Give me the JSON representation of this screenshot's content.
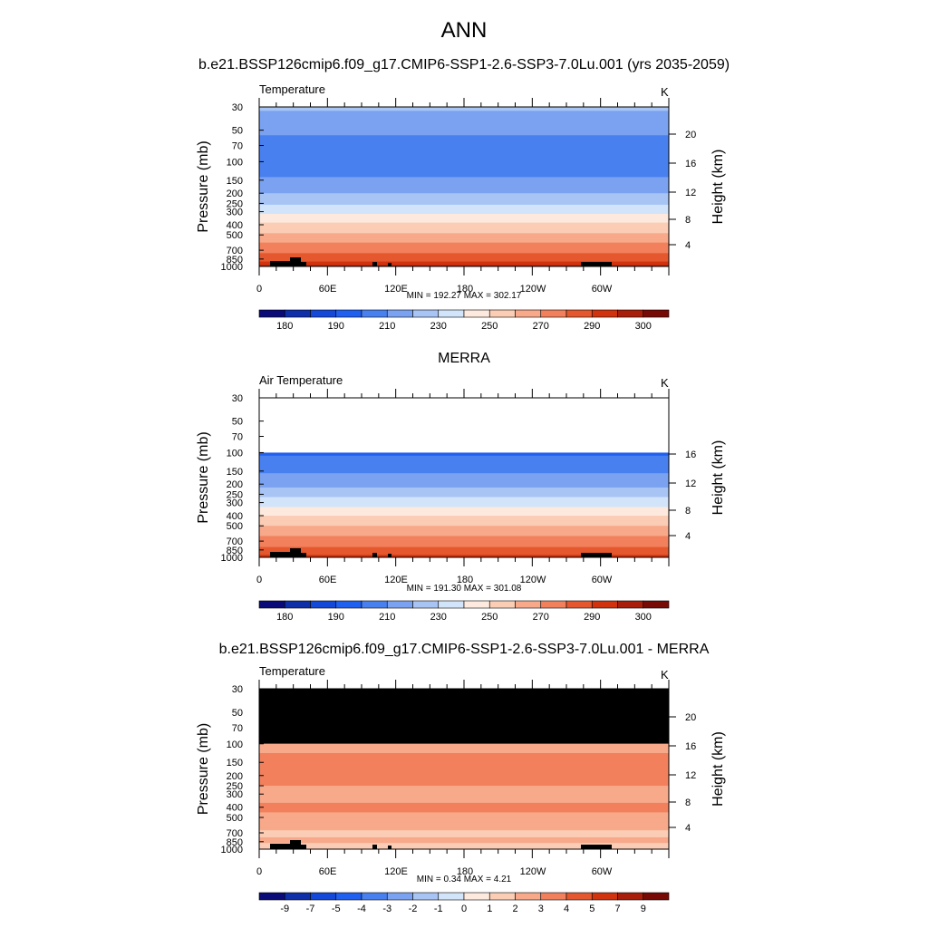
{
  "main_title": "ANN",
  "panels": [
    {
      "title": "b.e21.BSSP126cmip6.f09_g17.CMIP6-SSP1-2.6-SSP3-7.0Lu.001 (yrs 2035-2059)",
      "left_label": "Temperature",
      "right_label": "K",
      "minmax": "MIN = 192.27  MAX = 302.17",
      "ylabel": "Pressure (mb)",
      "y2label": "Height (km)",
      "height_ticks": [
        "20",
        "16",
        "12",
        "8",
        "4"
      ],
      "colorbar_labels": [
        "180",
        "190",
        "210",
        "230",
        "250",
        "270",
        "290",
        "300"
      ]
    },
    {
      "title": "MERRA",
      "left_label": "Air Temperature",
      "right_label": "K",
      "minmax": "MIN = 191.30  MAX = 301.08",
      "ylabel": "Pressure (mb)",
      "y2label": "Height (km)",
      "height_ticks": [
        "16",
        "12",
        "8",
        "4"
      ],
      "colorbar_labels": [
        "180",
        "190",
        "210",
        "230",
        "250",
        "270",
        "290",
        "300"
      ]
    },
    {
      "title": "b.e21.BSSP126cmip6.f09_g17.CMIP6-SSP1-2.6-SSP3-7.0Lu.001 - MERRA",
      "left_label": "Temperature",
      "right_label": "K",
      "minmax": "MIN =   0.34  MAX =   4.21",
      "ylabel": "Pressure (mb)",
      "y2label": "Height (km)",
      "height_ticks": [
        "20",
        "16",
        "12",
        "8",
        "4"
      ],
      "colorbar_labels": [
        "-9",
        "-7",
        "-5",
        "-4",
        "-3",
        "-2",
        "-1",
        "0",
        "1",
        "2",
        "3",
        "4",
        "5",
        "7",
        "9"
      ]
    }
  ],
  "axes": {
    "pressure_ticks": [
      "30",
      "50",
      "70",
      "100",
      "150",
      "200",
      "250",
      "300",
      "400",
      "500",
      "700",
      "850",
      "1000"
    ],
    "lon_ticks": [
      "0",
      "60E",
      "120E",
      "180",
      "120W",
      "60W"
    ]
  },
  "colors": {
    "temperature_palette": [
      "#0a0a78",
      "#0f2fa8",
      "#1448d8",
      "#2060f0",
      "#4880f0",
      "#7aa2f0",
      "#a8c4f4",
      "#d2e4fa",
      "#fde9dd",
      "#fbcdb5",
      "#f7a98a",
      "#f2805c",
      "#e5582f",
      "#d1330f",
      "#a81e0a",
      "#780a05"
    ],
    "difference_palette": [
      "#0a0a78",
      "#0f2fa8",
      "#1448d8",
      "#2060f0",
      "#4880f0",
      "#7aa2f0",
      "#a8c4f4",
      "#d2e4fa",
      "#fde9dd",
      "#fbcdb5",
      "#f7a98a",
      "#f2805c",
      "#e5582f",
      "#d1330f",
      "#a81e0a",
      "#780a05"
    ],
    "missing": "#000000"
  },
  "chart_data": [
    {
      "type": "heatmap",
      "title": "b.e21.BSSP126cmip6.f09_g17.CMIP6-SSP1-2.6-SSP3-7.0Lu.001 (yrs 2035-2059)",
      "variable": "Temperature",
      "units": "K",
      "xlabel": "",
      "ylabel": "Pressure (mb)",
      "y2label": "Height (km)",
      "x_ticks": [
        "0",
        "60E",
        "120E",
        "180",
        "120W",
        "60W"
      ],
      "y_ticks": [
        30,
        50,
        70,
        100,
        150,
        200,
        250,
        300,
        400,
        500,
        700,
        850,
        1000
      ],
      "ylim": [
        1000,
        30
      ],
      "y_scale": "log",
      "min": 192.27,
      "max": 302.17,
      "levels": [
        180,
        185,
        190,
        200,
        210,
        220,
        230,
        240,
        250,
        260,
        270,
        280,
        290,
        295,
        300
      ],
      "profile": [
        {
          "p": 30,
          "value": 222
        },
        {
          "p": 50,
          "value": 212
        },
        {
          "p": 70,
          "value": 204
        },
        {
          "p": 100,
          "value": 202
        },
        {
          "p": 150,
          "value": 212
        },
        {
          "p": 200,
          "value": 220
        },
        {
          "p": 250,
          "value": 228
        },
        {
          "p": 300,
          "value": 238
        },
        {
          "p": 400,
          "value": 252
        },
        {
          "p": 500,
          "value": 262
        },
        {
          "p": 700,
          "value": 276
        },
        {
          "p": 850,
          "value": 286
        },
        {
          "p": 1000,
          "value": 296
        }
      ]
    },
    {
      "type": "heatmap",
      "title": "MERRA",
      "variable": "Air Temperature",
      "units": "K",
      "xlabel": "",
      "ylabel": "Pressure (mb)",
      "y2label": "Height (km)",
      "x_ticks": [
        "0",
        "60E",
        "120E",
        "180",
        "120W",
        "60W"
      ],
      "y_ticks": [
        30,
        50,
        70,
        100,
        150,
        200,
        250,
        300,
        400,
        500,
        700,
        850,
        1000
      ],
      "ylim": [
        1000,
        30
      ],
      "y_scale": "log",
      "min": 191.3,
      "max": 301.08,
      "levels": [
        180,
        185,
        190,
        200,
        210,
        220,
        230,
        240,
        250,
        260,
        270,
        280,
        290,
        295,
        300
      ],
      "data_top_pressure": 100,
      "profile": [
        {
          "p": 100,
          "value": 198
        },
        {
          "p": 150,
          "value": 208
        },
        {
          "p": 200,
          "value": 217
        },
        {
          "p": 250,
          "value": 226
        },
        {
          "p": 300,
          "value": 236
        },
        {
          "p": 400,
          "value": 250
        },
        {
          "p": 500,
          "value": 260
        },
        {
          "p": 700,
          "value": 274
        },
        {
          "p": 850,
          "value": 284
        },
        {
          "p": 1000,
          "value": 293
        }
      ]
    },
    {
      "type": "heatmap",
      "title": "b.e21.BSSP126cmip6.f09_g17.CMIP6-SSP1-2.6-SSP3-7.0Lu.001 - MERRA",
      "variable": "Temperature",
      "units": "K",
      "xlabel": "",
      "ylabel": "Pressure (mb)",
      "y2label": "Height (km)",
      "x_ticks": [
        "0",
        "60E",
        "120E",
        "180",
        "120W",
        "60W"
      ],
      "y_ticks": [
        30,
        50,
        70,
        100,
        150,
        200,
        250,
        300,
        400,
        500,
        700,
        850,
        1000
      ],
      "ylim": [
        1000,
        30
      ],
      "y_scale": "log",
      "min": 0.34,
      "max": 4.21,
      "levels": [
        -9,
        -7,
        -5,
        -4,
        -3,
        -2,
        -1,
        0,
        1,
        2,
        3,
        4,
        5,
        7,
        9
      ],
      "missing_above_pressure": 100,
      "profile": [
        {
          "p": 100,
          "value": 2.5
        },
        {
          "p": 150,
          "value": 3.5
        },
        {
          "p": 200,
          "value": 3.3
        },
        {
          "p": 250,
          "value": 3.0
        },
        {
          "p": 300,
          "value": 2.6
        },
        {
          "p": 400,
          "value": 3.2
        },
        {
          "p": 500,
          "value": 2.8
        },
        {
          "p": 700,
          "value": 1.8
        },
        {
          "p": 850,
          "value": 2.2
        },
        {
          "p": 1000,
          "value": 1.2
        }
      ]
    }
  ]
}
